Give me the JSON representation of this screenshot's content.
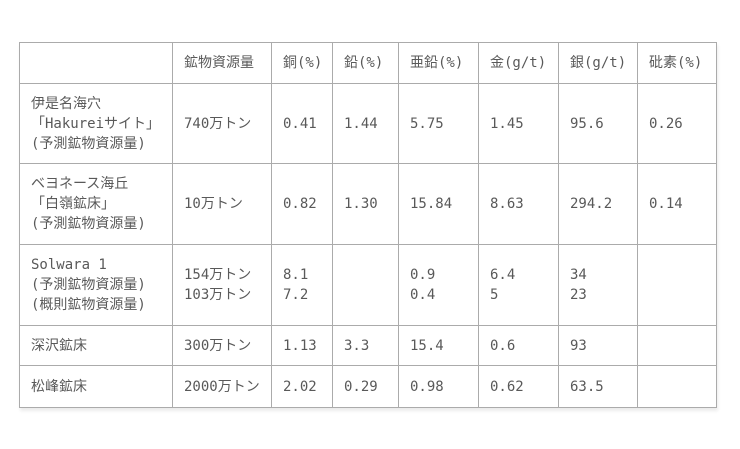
{
  "chart_data": {
    "type": "table",
    "title": "",
    "columns": [
      "",
      "鉱物資源量",
      "銅(%)",
      "鉛(%)",
      "亜鉛(%)",
      "金(g/t)",
      "銀(g/t)",
      "砒素(%)"
    ],
    "rows": [
      [
        "伊是名海穴\n「Hakureiサイト」\n(予測鉱物資源量)",
        "740万トン",
        "0.41",
        "1.44",
        "5.75",
        "1.45",
        "95.6",
        "0.26"
      ],
      [
        "ベヨネース海丘\n「白嶺鉱床」\n(予測鉱物資源量)",
        "10万トン",
        "0.82",
        "1.30",
        "15.84",
        "8.63",
        "294.2",
        "0.14"
      ],
      [
        "Solwara 1\n(予測鉱物資源量)\n(概則鉱物資源量)",
        "154万トン\n103万トン",
        "8.1\n7.2",
        "",
        "0.9\n0.4",
        "6.4\n5",
        "34\n23",
        ""
      ],
      [
        "深沢鉱床",
        "300万トン",
        "1.13",
        "3.3",
        "15.4",
        "0.6",
        "93",
        ""
      ],
      [
        "松峰鉱床",
        "2000万トン",
        "2.02",
        "0.29",
        "0.98",
        "0.62",
        "63.5",
        ""
      ]
    ],
    "layout_hints": {
      "grid": "all-borders",
      "header_row": true,
      "alignment": "left"
    }
  },
  "colors": {
    "background": "#ffffff",
    "border": "#ababab",
    "text": "#595959"
  }
}
